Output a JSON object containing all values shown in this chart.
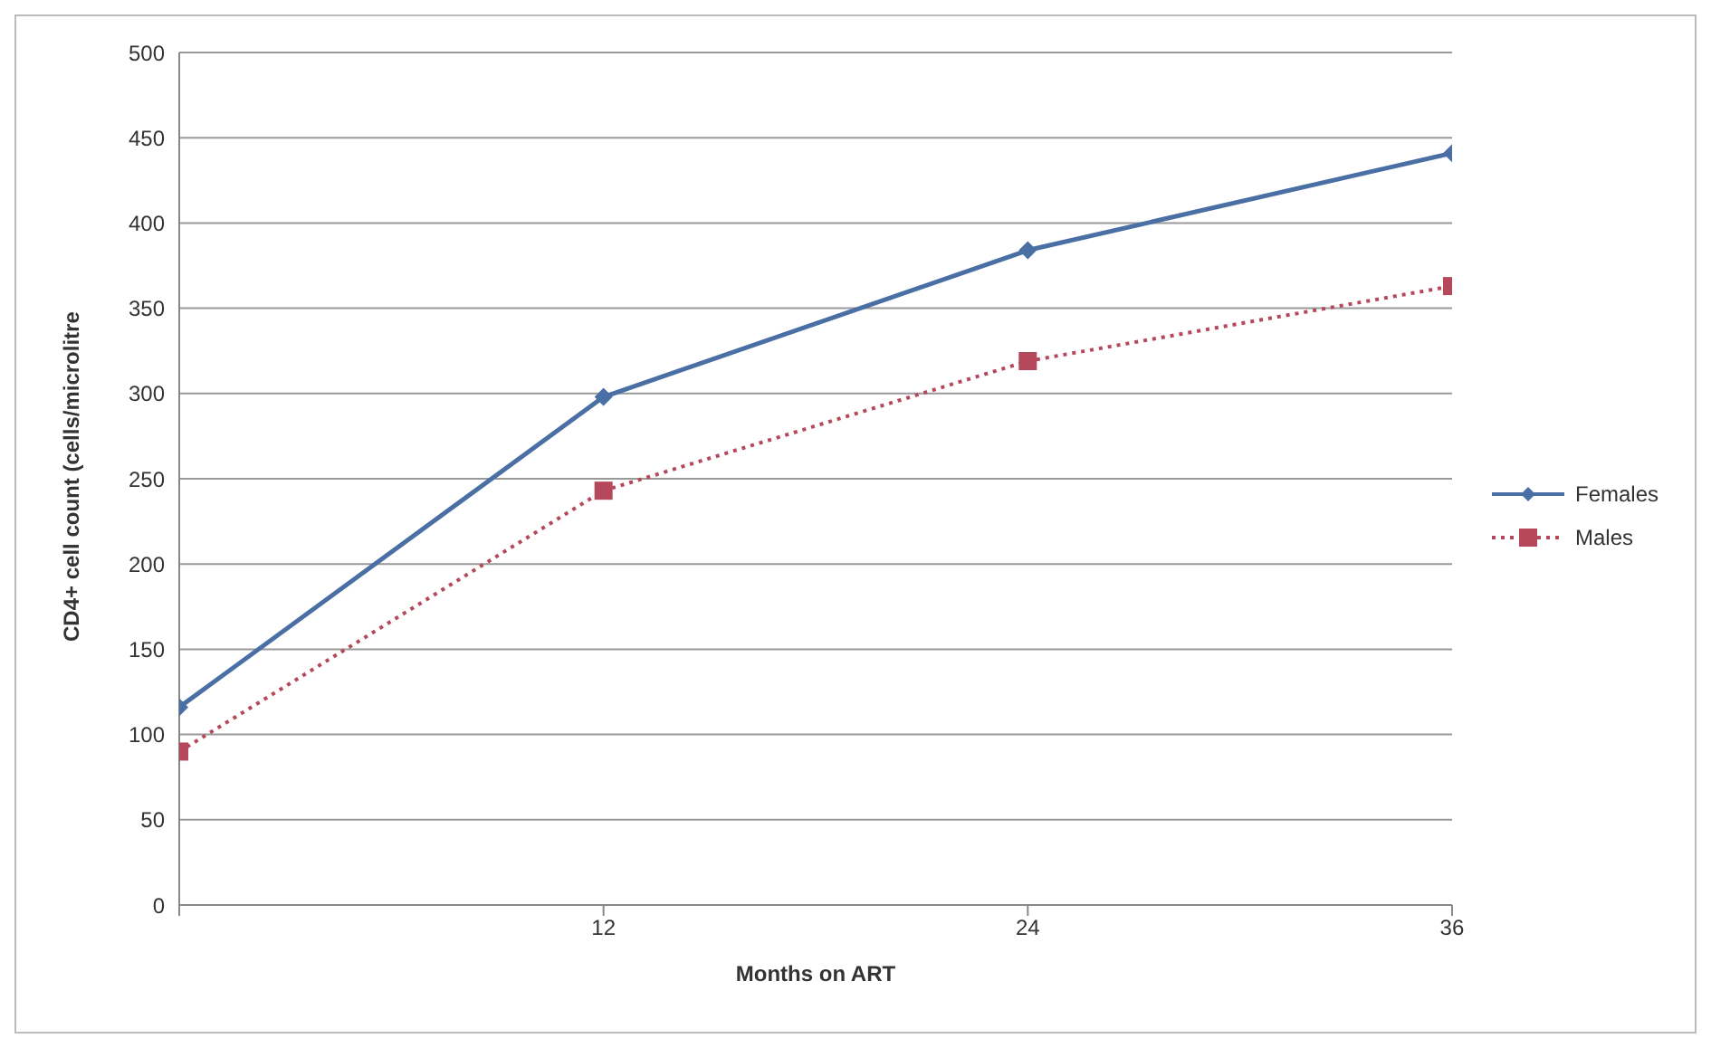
{
  "chart_data": {
    "type": "line",
    "xlabel": "Months on ART",
    "ylabel": "CD4+ cell count (cells/microlitre",
    "categories": [
      null,
      "12",
      "24",
      "36"
    ],
    "series": [
      {
        "name": "Females",
        "color": "#4a6fa5",
        "values": [
          116,
          298,
          384,
          441
        ],
        "marker": "diamond",
        "line_style": "solid"
      },
      {
        "name": "Males",
        "color": "#b5485b",
        "values": [
          90,
          243,
          319,
          363
        ],
        "marker": "square",
        "line_style": "dotted"
      }
    ],
    "ylim": [
      0,
      500
    ],
    "yticks": [
      0,
      50,
      100,
      150,
      200,
      250,
      300,
      350,
      400,
      450,
      500
    ],
    "grid": "y",
    "legend": "right"
  }
}
